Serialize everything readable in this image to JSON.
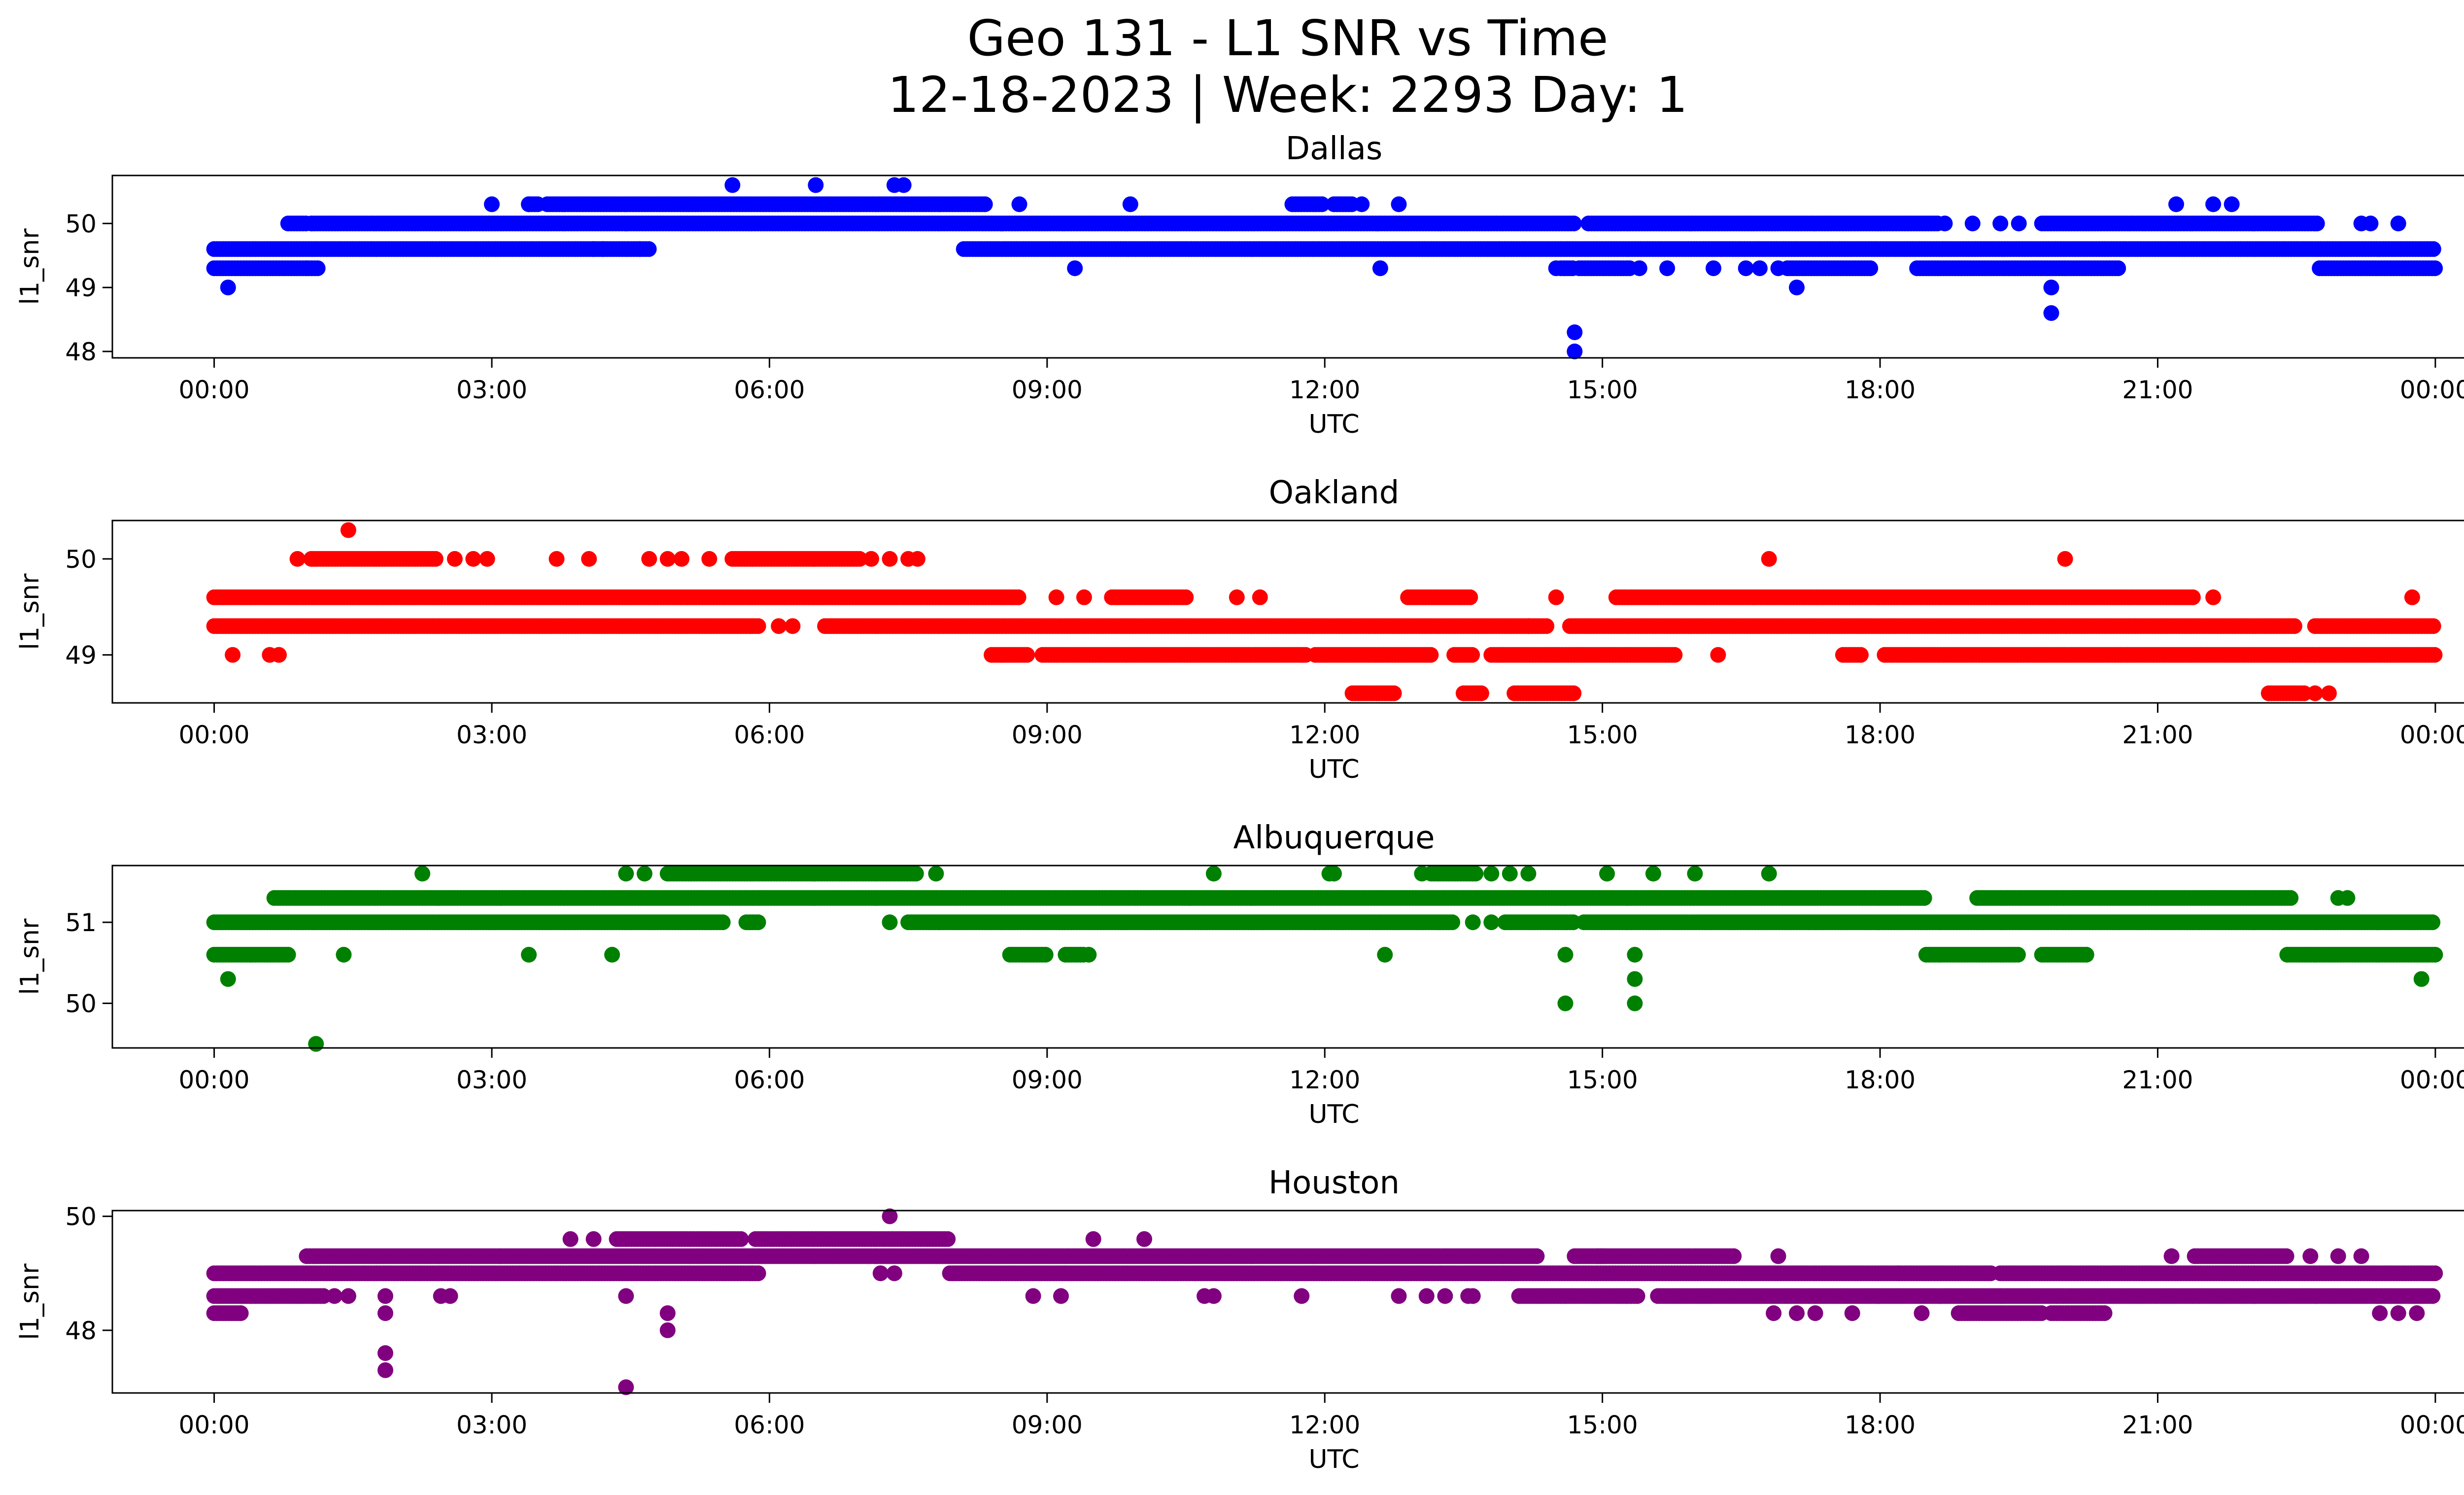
{
  "figure": {
    "title_line1": "Geo 131 - L1 SNR vs Time",
    "title_line2": "12-18-2023 | Week: 2293 Day: 1"
  },
  "chart_data": [
    {
      "type": "scatter",
      "title": "Dallas",
      "xlabel": "UTC",
      "ylabel": "l1_snr",
      "color": "#0000ff",
      "xticks": [
        "00:00",
        "03:00",
        "06:00",
        "09:00",
        "12:00",
        "15:00",
        "18:00",
        "21:00",
        "00:00"
      ],
      "xlim_hours": [
        -1.1,
        25.3
      ],
      "ylim": [
        47.9,
        50.75
      ],
      "yticks": [
        48,
        49,
        50
      ],
      "bands": [
        {
          "y": 49.3,
          "ranges": [
            [
              0.0,
              1.15
            ],
            [
              14.55,
              14.7
            ],
            [
              14.75,
              15.3
            ],
            [
              17.0,
              17.9
            ],
            [
              18.4,
              20.6
            ],
            [
              22.75,
              24.0
            ]
          ]
        },
        {
          "y": 49.6,
          "ranges": [
            [
              0.0,
              4.7
            ],
            [
              8.1,
              24.0
            ]
          ]
        },
        {
          "y": 50.0,
          "ranges": [
            [
              0.8,
              1.0
            ],
            [
              1.05,
              14.7
            ],
            [
              14.85,
              18.65
            ],
            [
              19.75,
              22.75
            ]
          ]
        },
        {
          "y": 50.3,
          "ranges": [
            [
              3.4,
              3.5
            ],
            [
              3.6,
              8.35
            ],
            [
              11.65,
              12.0
            ],
            [
              12.1,
              12.3
            ]
          ]
        }
      ],
      "points": [
        [
          0.15,
          49.0
        ],
        [
          1.0,
          49.3
        ],
        [
          4.1,
          49.6
        ],
        [
          4.2,
          49.6
        ],
        [
          4.6,
          49.6
        ],
        [
          3.0,
          50.3
        ],
        [
          3.4,
          50.3
        ],
        [
          8.7,
          50.3
        ],
        [
          9.9,
          50.3
        ],
        [
          12.4,
          50.3
        ],
        [
          12.8,
          50.3
        ],
        [
          21.2,
          50.3
        ],
        [
          21.6,
          50.3
        ],
        [
          21.8,
          50.3
        ],
        [
          5.6,
          50.6
        ],
        [
          6.5,
          50.6
        ],
        [
          7.35,
          50.6
        ],
        [
          7.45,
          50.6
        ],
        [
          9.3,
          49.3
        ],
        [
          12.6,
          49.3
        ],
        [
          14.5,
          49.3
        ],
        [
          15.4,
          49.3
        ],
        [
          15.7,
          49.3
        ],
        [
          16.2,
          49.3
        ],
        [
          16.55,
          49.3
        ],
        [
          16.7,
          49.3
        ],
        [
          16.9,
          49.3
        ],
        [
          17.1,
          49.0
        ],
        [
          19.85,
          49.0
        ],
        [
          19.85,
          48.6
        ],
        [
          14.7,
          48.3
        ],
        [
          14.7,
          48.0
        ],
        [
          18.7,
          50.0
        ],
        [
          19.0,
          50.0
        ],
        [
          19.3,
          50.0
        ],
        [
          19.5,
          50.0
        ],
        [
          23.2,
          50.0
        ],
        [
          23.3,
          50.0
        ],
        [
          23.6,
          50.0
        ]
      ]
    },
    {
      "type": "scatter",
      "title": "Oakland",
      "xlabel": "UTC",
      "ylabel": "l1_snr",
      "color": "#ff0000",
      "xticks": [
        "00:00",
        "03:00",
        "06:00",
        "09:00",
        "12:00",
        "15:00",
        "18:00",
        "21:00",
        "00:00"
      ],
      "xlim_hours": [
        -1.1,
        25.3
      ],
      "ylim": [
        48.5,
        50.4
      ],
      "yticks": [
        49,
        50
      ],
      "bands": [
        {
          "y": 48.6,
          "ranges": [
            [
              12.3,
              12.75
            ],
            [
              13.5,
              13.7
            ],
            [
              14.05,
              14.7
            ],
            [
              22.2,
              22.6
            ]
          ]
        },
        {
          "y": 49.0,
          "ranges": [
            [
              8.4,
              8.8
            ],
            [
              8.95,
              11.8
            ],
            [
              11.9,
              13.15
            ],
            [
              13.4,
              13.6
            ],
            [
              13.8,
              15.8
            ],
            [
              17.6,
              17.8
            ],
            [
              18.05,
              24.0
            ]
          ]
        },
        {
          "y": 49.3,
          "ranges": [
            [
              0.0,
              5.9
            ],
            [
              6.6,
              14.4
            ],
            [
              14.65,
              22.5
            ],
            [
              22.7,
              24.0
            ]
          ]
        },
        {
          "y": 49.6,
          "ranges": [
            [
              0.0,
              8.7
            ],
            [
              9.7,
              10.5
            ],
            [
              12.9,
              13.6
            ],
            [
              15.15,
              21.4
            ]
          ]
        },
        {
          "y": 50.0,
          "ranges": [
            [
              1.05,
              2.4
            ],
            [
              5.6,
              7.0
            ]
          ]
        }
      ],
      "points": [
        [
          0.2,
          49.0
        ],
        [
          0.6,
          49.0
        ],
        [
          0.7,
          49.0
        ],
        [
          0.9,
          50.0
        ],
        [
          1.45,
          50.3
        ],
        [
          2.6,
          50.0
        ],
        [
          2.8,
          50.0
        ],
        [
          2.95,
          50.0
        ],
        [
          3.7,
          50.0
        ],
        [
          4.05,
          50.0
        ],
        [
          4.7,
          50.0
        ],
        [
          4.9,
          50.0
        ],
        [
          5.05,
          50.0
        ],
        [
          5.35,
          50.0
        ],
        [
          7.1,
          50.0
        ],
        [
          7.3,
          50.0
        ],
        [
          7.5,
          50.0
        ],
        [
          7.6,
          50.0
        ],
        [
          6.1,
          49.3
        ],
        [
          6.25,
          49.3
        ],
        [
          9.1,
          49.6
        ],
        [
          9.4,
          49.6
        ],
        [
          11.05,
          49.6
        ],
        [
          11.3,
          49.6
        ],
        [
          14.5,
          49.6
        ],
        [
          14.2,
          49.3
        ],
        [
          16.25,
          49.0
        ],
        [
          16.8,
          50.0
        ],
        [
          20.0,
          50.0
        ],
        [
          21.6,
          49.6
        ],
        [
          23.75,
          49.6
        ],
        [
          22.7,
          48.6
        ],
        [
          22.85,
          48.6
        ]
      ]
    },
    {
      "type": "scatter",
      "title": "Albuquerque",
      "xlabel": "UTC",
      "ylabel": "l1_snr",
      "color": "#008000",
      "xticks": [
        "00:00",
        "03:00",
        "06:00",
        "09:00",
        "12:00",
        "15:00",
        "18:00",
        "21:00",
        "00:00"
      ],
      "xlim_hours": [
        -1.1,
        25.3
      ],
      "ylim": [
        49.45,
        51.7
      ],
      "yticks": [
        50,
        51
      ],
      "bands": [
        {
          "y": 50.6,
          "ranges": [
            [
              0.0,
              0.8
            ],
            [
              8.6,
              9.0
            ],
            [
              9.2,
              9.4
            ],
            [
              18.5,
              19.5
            ],
            [
              19.75,
              20.25
            ],
            [
              22.4,
              24.0
            ]
          ]
        },
        {
          "y": 51.0,
          "ranges": [
            [
              0.0,
              5.5
            ],
            [
              5.75,
              5.9
            ],
            [
              7.5,
              13.4
            ],
            [
              13.95,
              14.7
            ],
            [
              14.8,
              24.0
            ]
          ]
        },
        {
          "y": 51.3,
          "ranges": [
            [
              0.65,
              18.5
            ],
            [
              19.05,
              22.45
            ]
          ]
        },
        {
          "y": 51.6,
          "ranges": [
            [
              4.9,
              7.6
            ],
            [
              13.15,
              13.65
            ]
          ]
        }
      ],
      "points": [
        [
          0.15,
          50.3
        ],
        [
          1.1,
          49.5
        ],
        [
          1.4,
          50.6
        ],
        [
          3.4,
          50.6
        ],
        [
          4.3,
          50.6
        ],
        [
          2.25,
          51.6
        ],
        [
          4.45,
          51.6
        ],
        [
          4.65,
          51.6
        ],
        [
          7.3,
          51.0
        ],
        [
          7.8,
          51.6
        ],
        [
          10.8,
          51.6
        ],
        [
          12.05,
          51.6
        ],
        [
          12.1,
          51.6
        ],
        [
          12.65,
          50.6
        ],
        [
          13.05,
          51.6
        ],
        [
          13.8,
          51.6
        ],
        [
          14.0,
          51.6
        ],
        [
          14.2,
          51.6
        ],
        [
          14.6,
          50.6
        ],
        [
          14.6,
          50.0
        ],
        [
          15.05,
          51.6
        ],
        [
          15.35,
          50.6
        ],
        [
          15.35,
          50.3
        ],
        [
          15.35,
          50.0
        ],
        [
          15.55,
          51.6
        ],
        [
          16.0,
          51.6
        ],
        [
          16.8,
          51.6
        ],
        [
          23.85,
          50.3
        ],
        [
          22.95,
          51.3
        ],
        [
          23.05,
          51.3
        ],
        [
          13.6,
          51.0
        ],
        [
          13.8,
          51.0
        ],
        [
          9.45,
          50.6
        ]
      ]
    },
    {
      "type": "scatter",
      "title": "Houston",
      "xlabel": "UTC",
      "ylabel": "l1_snr",
      "color": "#800080",
      "xticks": [
        "00:00",
        "03:00",
        "06:00",
        "09:00",
        "12:00",
        "15:00",
        "18:00",
        "21:00",
        "00:00"
      ],
      "xlim_hours": [
        -1.1,
        25.3
      ],
      "ylim": [
        46.9,
        50.1
      ],
      "yticks": [
        48,
        50
      ],
      "bands": [
        {
          "y": 48.3,
          "ranges": [
            [
              0.0,
              0.3
            ],
            [
              18.85,
              19.75
            ],
            [
              19.85,
              20.45
            ]
          ]
        },
        {
          "y": 48.6,
          "ranges": [
            [
              0.0,
              1.2
            ],
            [
              14.1,
              15.4
            ],
            [
              15.6,
              24.0
            ]
          ]
        },
        {
          "y": 49.0,
          "ranges": [
            [
              0.0,
              5.9
            ],
            [
              7.95,
              19.2
            ],
            [
              19.3,
              24.0
            ]
          ]
        },
        {
          "y": 49.3,
          "ranges": [
            [
              1.0,
              14.3
            ],
            [
              14.7,
              15.05
            ],
            [
              14.95,
              16.45
            ],
            [
              21.4,
              22.4
            ]
          ]
        },
        {
          "y": 49.6,
          "ranges": [
            [
              4.35,
              5.7
            ],
            [
              5.85,
              7.95
            ]
          ]
        }
      ],
      "points": [
        [
          1.3,
          48.6
        ],
        [
          1.45,
          48.6
        ],
        [
          1.85,
          48.6
        ],
        [
          1.85,
          48.3
        ],
        [
          1.85,
          47.6
        ],
        [
          1.85,
          47.3
        ],
        [
          2.45,
          48.6
        ],
        [
          2.55,
          48.6
        ],
        [
          3.85,
          49.6
        ],
        [
          4.1,
          49.6
        ],
        [
          4.45,
          48.6
        ],
        [
          4.45,
          47.0
        ],
        [
          4.9,
          48.3
        ],
        [
          4.9,
          48.0
        ],
        [
          7.2,
          49.0
        ],
        [
          7.35,
          49.0
        ],
        [
          7.3,
          50.0
        ],
        [
          8.85,
          48.6
        ],
        [
          9.15,
          48.6
        ],
        [
          9.5,
          49.6
        ],
        [
          10.05,
          49.6
        ],
        [
          10.7,
          48.6
        ],
        [
          10.8,
          48.6
        ],
        [
          11.75,
          48.6
        ],
        [
          12.8,
          48.6
        ],
        [
          13.1,
          48.6
        ],
        [
          13.3,
          48.6
        ],
        [
          13.55,
          48.6
        ],
        [
          13.6,
          48.6
        ],
        [
          16.85,
          48.3
        ],
        [
          17.1,
          48.3
        ],
        [
          17.3,
          48.3
        ],
        [
          17.7,
          48.3
        ],
        [
          18.45,
          48.3
        ],
        [
          16.9,
          49.3
        ],
        [
          18.2,
          49.0
        ],
        [
          21.15,
          49.3
        ],
        [
          22.65,
          49.3
        ],
        [
          22.95,
          49.3
        ],
        [
          23.2,
          49.3
        ],
        [
          23.4,
          48.3
        ],
        [
          23.6,
          48.3
        ],
        [
          23.8,
          48.3
        ]
      ]
    }
  ]
}
